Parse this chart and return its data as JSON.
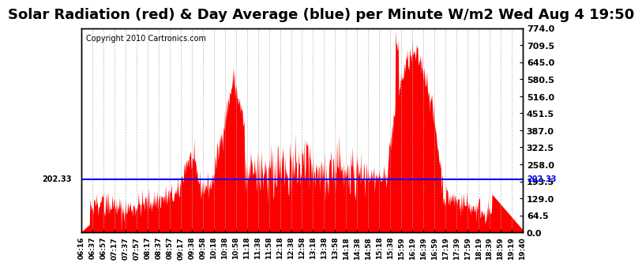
{
  "title": "Solar Radiation (red) & Day Average (blue) per Minute W/m2 Wed Aug 4 19:50",
  "copyright_text": "Copyright 2010 Cartronics.com",
  "y_min": 0.0,
  "y_max": 774.0,
  "y_ticks": [
    0.0,
    64.5,
    129.0,
    193.5,
    258.0,
    322.5,
    387.0,
    451.5,
    516.0,
    580.5,
    645.0,
    709.5,
    774.0
  ],
  "day_average": 202.33,
  "fill_color": "#FF0000",
  "line_color": "#0000FF",
  "background_color": "#FFFFFF",
  "grid_color": "#AAAAAA",
  "title_fontsize": 13,
  "x_labels": [
    "06:16",
    "06:37",
    "06:57",
    "07:17",
    "07:37",
    "07:57",
    "08:17",
    "08:37",
    "08:57",
    "09:17",
    "09:38",
    "09:58",
    "10:18",
    "10:38",
    "10:58",
    "11:18",
    "11:38",
    "11:58",
    "12:18",
    "12:38",
    "12:58",
    "13:18",
    "13:38",
    "13:58",
    "14:18",
    "14:38",
    "14:58",
    "15:18",
    "15:38",
    "15:59",
    "16:19",
    "16:39",
    "16:59",
    "17:19",
    "17:39",
    "17:59",
    "18:19",
    "18:39",
    "18:59",
    "19:19",
    "19:40"
  ]
}
